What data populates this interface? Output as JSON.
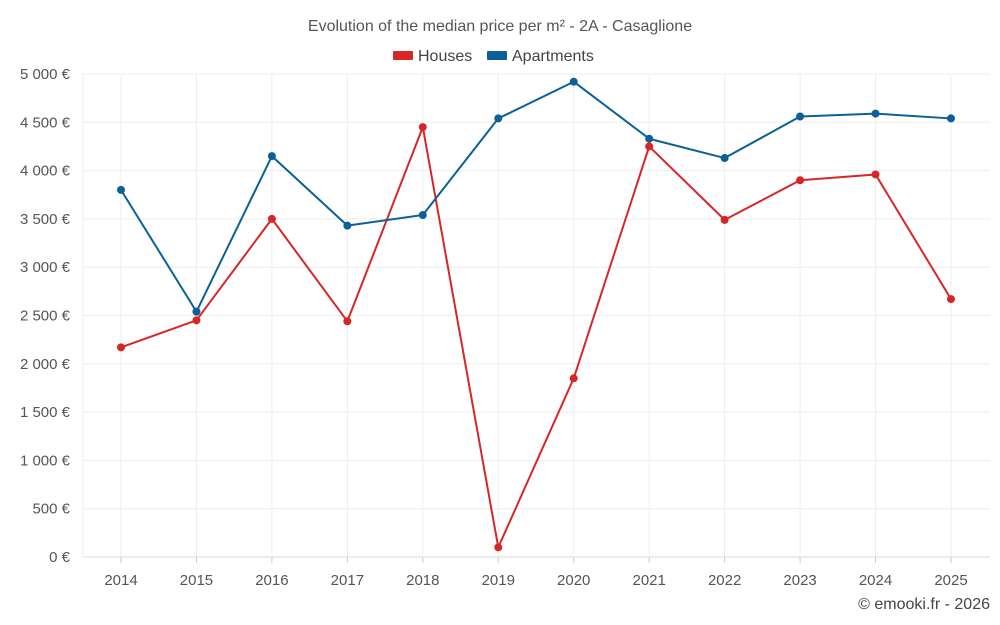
{
  "chart_data": {
    "type": "line",
    "title": "Evolution of the median price per m² - 2A - Casaglione",
    "categories": [
      "2014",
      "2015",
      "2016",
      "2017",
      "2018",
      "2019",
      "2020",
      "2021",
      "2022",
      "2023",
      "2024",
      "2025"
    ],
    "series": [
      {
        "name": "Houses",
        "color": "#d62728",
        "values": [
          2170,
          2450,
          3500,
          2440,
          4450,
          100,
          1850,
          4250,
          3490,
          3900,
          3960,
          2670
        ]
      },
      {
        "name": "Apartments",
        "color": "#0b6197",
        "values": [
          3800,
          2540,
          4150,
          3430,
          3540,
          4540,
          4920,
          4330,
          4130,
          4560,
          4590,
          4540
        ]
      }
    ],
    "ylim": [
      0,
      5000
    ],
    "yticks": [
      0,
      500,
      1000,
      1500,
      2000,
      2500,
      3000,
      3500,
      4000,
      4500,
      5000
    ],
    "ytick_labels": [
      "0 €",
      "500 €",
      "1 000 €",
      "1 500 €",
      "2 000 €",
      "2 500 €",
      "3 000 €",
      "3 500 €",
      "4 000 €",
      "4 500 €",
      "5 000 €"
    ],
    "xlabel": "",
    "ylabel": "",
    "grid": true,
    "legend_position": "top-center"
  },
  "footer": {
    "copyright": "© emooki.fr - 2026"
  }
}
